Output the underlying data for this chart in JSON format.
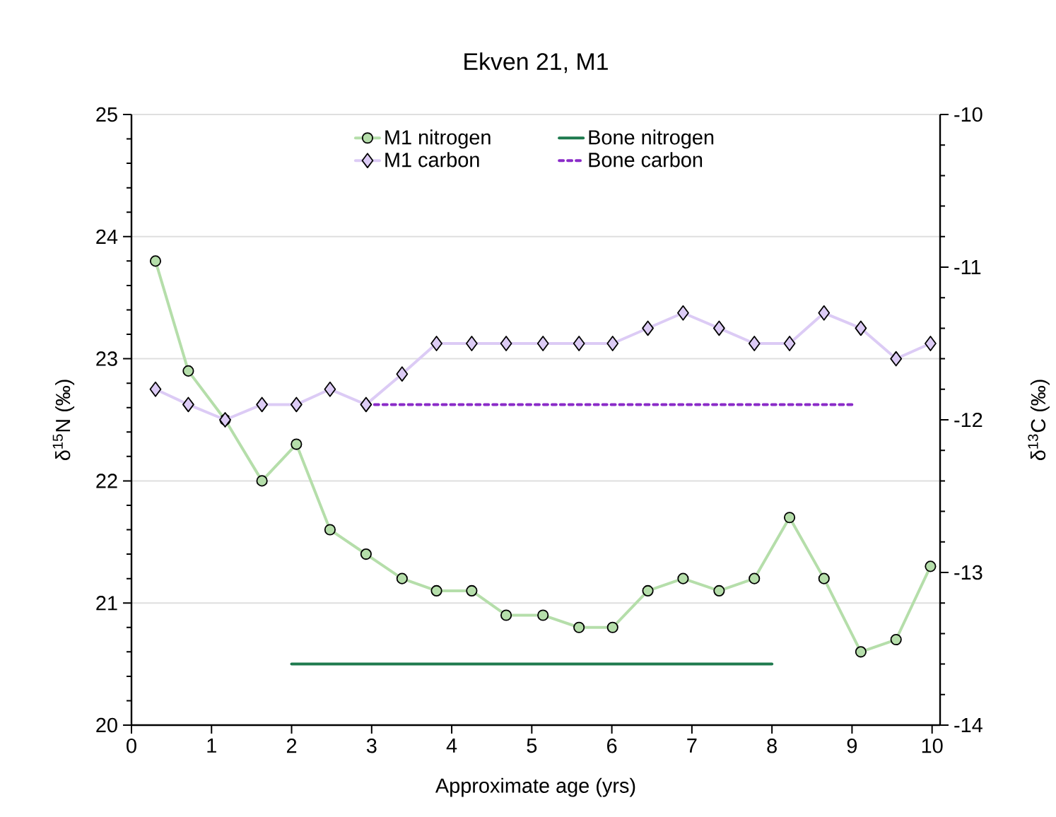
{
  "chart_data": {
    "type": "line",
    "title": "Ekven 21, M1",
    "xlabel": "Approximate age (yrs)",
    "ylabel": "δ$^{15}$N (‰)",
    "y2label": "δ$^{13}$C (‰)",
    "x": [
      0.3,
      0.71,
      1.17,
      1.63,
      2.06,
      2.48,
      2.93,
      3.38,
      3.81,
      4.25,
      4.68,
      5.14,
      5.59,
      6.01,
      6.45,
      6.89,
      7.34,
      7.78,
      8.22,
      8.65,
      9.11,
      9.55,
      9.98
    ],
    "series": [
      {
        "name": "M1 nitrogen",
        "color": "#b5deaa",
        "marker": "circle",
        "values": [
          23.8,
          22.9,
          22.5,
          22.0,
          22.3,
          21.6,
          21.4,
          21.2,
          21.1,
          21.1,
          20.9,
          20.9,
          20.8,
          20.8,
          21.1,
          21.2,
          21.1,
          21.2,
          21.7,
          21.2,
          20.6,
          20.7,
          21.3
        ]
      },
      {
        "name": "Bone nitrogen",
        "color": "#1e7a4e",
        "marker": "none",
        "line_style": "solid",
        "x": [
          2,
          8
        ],
        "values": [
          20.5,
          20.5
        ]
      },
      {
        "name": "M1 carbon",
        "color": "#dccbf5",
        "marker": "diamond",
        "axis": "y2",
        "values": [
          -11.8,
          -11.9,
          -12.0,
          -11.9,
          -11.9,
          -11.8,
          -11.9,
          -11.7,
          -11.5,
          -11.5,
          -11.5,
          -11.5,
          -11.5,
          -11.5,
          -11.4,
          -11.3,
          -11.4,
          -11.5,
          -11.5,
          -11.3,
          -11.4,
          -11.6,
          -11.5
        ]
      },
      {
        "name": "Bone carbon",
        "color": "#8a2bc8",
        "marker": "none",
        "line_style": "dashed",
        "axis": "y2",
        "x": [
          2.93,
          9.0
        ],
        "values": [
          -11.9,
          -11.9
        ]
      }
    ],
    "xlim": [
      0,
      10.1
    ],
    "xticks": [
      0,
      1,
      2,
      3,
      4,
      5,
      6,
      7,
      8,
      9,
      10
    ],
    "ylim": [
      20,
      25
    ],
    "yticks": [
      20,
      21,
      22,
      23,
      24,
      25
    ],
    "y2lim": [
      -14,
      -10
    ],
    "y2ticks": [
      -14,
      -13,
      -12,
      -11,
      -10
    ],
    "grid": "y",
    "legend": "top"
  }
}
